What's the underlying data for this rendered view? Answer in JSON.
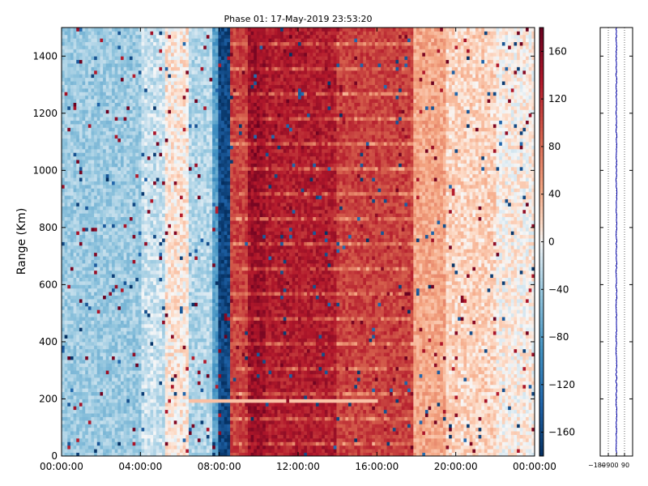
{
  "chart_data": [
    {
      "type": "heatmap",
      "title": "Phase 01: 17-May-2019 23:53:20",
      "xlabel": "",
      "ylabel": "Range (Km)",
      "ylim": [
        0,
        1500
      ],
      "xlim_hours": [
        0,
        24
      ],
      "x_ticks": [
        {
          "value": 0,
          "label": "00:00:00"
        },
        {
          "value": 4,
          "label": "04:00:00"
        },
        {
          "value": 8,
          "label": "08:00:00"
        },
        {
          "value": 12,
          "label": "12:00:00"
        },
        {
          "value": 16,
          "label": "16:00:00"
        },
        {
          "value": 20,
          "label": "20:00:00"
        },
        {
          "value": 24,
          "label": "00:00:00"
        }
      ],
      "y_ticks": [
        0,
        200,
        400,
        600,
        800,
        1000,
        1200,
        1400
      ],
      "colorbar": {
        "range": [
          -180,
          180
        ],
        "ticks": [
          -160,
          -120,
          -80,
          -40,
          0,
          40,
          80,
          120,
          160
        ],
        "colormap": "RdBu_r"
      },
      "phase_profile_hours": [
        {
          "start": 0,
          "end": 4,
          "value": -40
        },
        {
          "start": 4,
          "end": 5.2,
          "value": -20
        },
        {
          "start": 5.2,
          "end": 6.5,
          "value": 10
        },
        {
          "start": 6.5,
          "end": 7.6,
          "value": -30
        },
        {
          "start": 7.6,
          "end": 8,
          "value": -80
        },
        {
          "start": 8,
          "end": 8.6,
          "value": -160
        },
        {
          "start": 8.6,
          "end": 9.4,
          "value": 110
        },
        {
          "start": 9.4,
          "end": 10.4,
          "value": 150
        },
        {
          "start": 10.4,
          "end": 14,
          "value": 135
        },
        {
          "start": 14,
          "end": 17.8,
          "value": 110
        },
        {
          "start": 17.8,
          "end": 19.5,
          "value": 45
        },
        {
          "start": 19.5,
          "end": 22,
          "value": 20
        },
        {
          "start": 22,
          "end": 24,
          "value": 5
        }
      ],
      "grid": false
    },
    {
      "type": "line",
      "title": "",
      "xlabel": "",
      "ylabel": "",
      "xlim": [
        -180,
        180
      ],
      "ylim": [
        0,
        1500
      ],
      "x_ticks": [
        -180,
        -90,
        0,
        90
      ],
      "series": [
        {
          "name": "",
          "mean_x": 0,
          "spread": 6,
          "color": "#0000aa"
        }
      ],
      "grid": true
    }
  ]
}
